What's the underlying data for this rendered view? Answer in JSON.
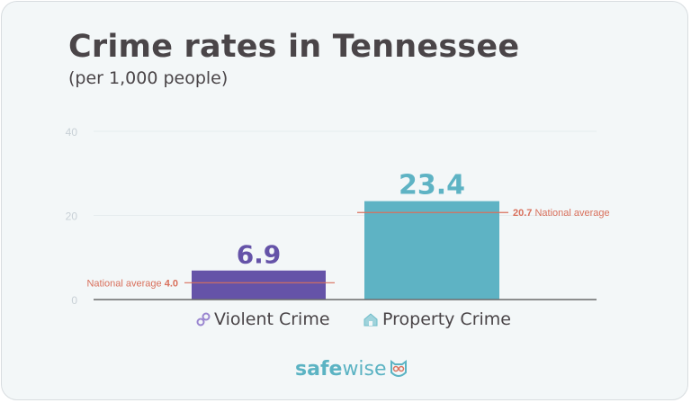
{
  "chart_data": {
    "type": "bar",
    "title": "Crime rates in Tennessee",
    "subtitle": "(per 1,000 people)",
    "categories": [
      "Violent Crime",
      "Property Crime"
    ],
    "values": [
      6.9,
      23.4
    ],
    "value_labels": [
      "6.9",
      "23.4"
    ],
    "colors": [
      "#6553a8",
      "#5eb3c4"
    ],
    "ylim": [
      0,
      40
    ],
    "yticks": [
      0,
      20,
      40
    ],
    "grid": true,
    "reference_lines": [
      {
        "category": "Violent Crime",
        "value": 4.0,
        "label_text": "National average",
        "label_value": "4.0",
        "side": "left"
      },
      {
        "category": "Property Crime",
        "value": 20.7,
        "label_text": "National average",
        "label_value": "20.7",
        "side": "right"
      }
    ],
    "reference_color": "#d9705c",
    "legend_icons": [
      "handcuffs-icon",
      "house-icon"
    ]
  },
  "brand": {
    "logo_bold": "safe",
    "logo_light": "wise"
  }
}
